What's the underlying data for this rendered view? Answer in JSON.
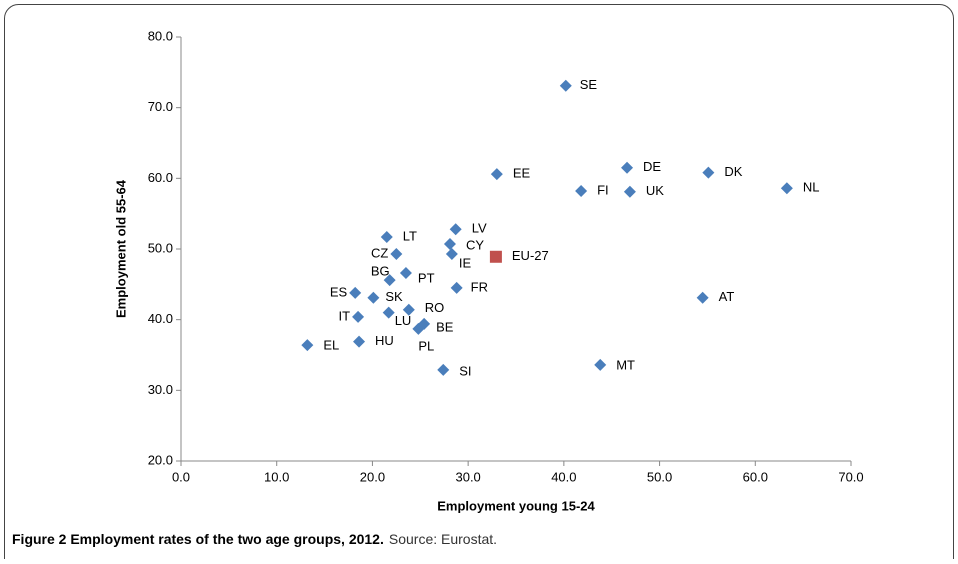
{
  "chart_data": {
    "type": "scatter",
    "xlabel": "Employment young 15-24",
    "ylabel": "Employment old 55-64",
    "caption": {
      "label": "Figure 2 Employment rates of the two age groups, 2012.",
      "source": "Source: Eurostat."
    },
    "xlim": [
      0,
      70
    ],
    "ylim": [
      20,
      80
    ],
    "xticks": [
      {
        "value": 0,
        "label": "0.0"
      },
      {
        "value": 10,
        "label": "10.0"
      },
      {
        "value": 20,
        "label": "20.0"
      },
      {
        "value": 30,
        "label": "30.0"
      },
      {
        "value": 40,
        "label": "40.0"
      },
      {
        "value": 50,
        "label": "50.0"
      },
      {
        "value": 60,
        "label": "60.0"
      },
      {
        "value": 70,
        "label": "70.0"
      }
    ],
    "yticks": [
      {
        "value": 20,
        "label": "20.0"
      },
      {
        "value": 30,
        "label": "30.0"
      },
      {
        "value": 40,
        "label": "40.0"
      },
      {
        "value": 50,
        "label": "50.0"
      },
      {
        "value": 60,
        "label": "60.0"
      },
      {
        "value": 70,
        "label": "70.0"
      },
      {
        "value": 80,
        "label": "80.0"
      }
    ],
    "series": [
      {
        "color": "#4a7ebb",
        "marker": "diamond",
        "labels": [
          "SE",
          "DE",
          "DK",
          "EE",
          "FI",
          "UK",
          "NL",
          "LV",
          "CY",
          "LT",
          "CZ",
          "IE",
          "BG",
          "PT",
          "ES",
          "SK",
          "FR",
          "AT",
          "RO",
          "IT",
          "LU",
          "BE",
          "PL",
          "EL",
          "HU",
          "MT",
          "SI"
        ],
        "x": [
          40.2,
          46.6,
          55.1,
          33.0,
          41.8,
          46.9,
          63.3,
          28.7,
          28.1,
          21.5,
          22.5,
          28.3,
          21.8,
          23.5,
          18.2,
          20.1,
          28.8,
          54.5,
          23.8,
          18.5,
          21.7,
          25.4,
          24.8,
          13.2,
          18.6,
          43.8,
          27.4
        ],
        "y": [
          73.1,
          61.5,
          60.8,
          60.6,
          58.2,
          58.1,
          58.6,
          52.8,
          50.7,
          51.7,
          49.3,
          49.3,
          45.6,
          46.6,
          43.8,
          43.1,
          44.5,
          43.1,
          41.4,
          40.4,
          41.0,
          39.4,
          38.7,
          36.4,
          36.9,
          33.6,
          32.9
        ]
      },
      {
        "color": "#c0504d",
        "marker": "square",
        "labels": [
          "EU-27"
        ],
        "x": [
          32.9
        ],
        "y": [
          48.9
        ]
      }
    ]
  }
}
